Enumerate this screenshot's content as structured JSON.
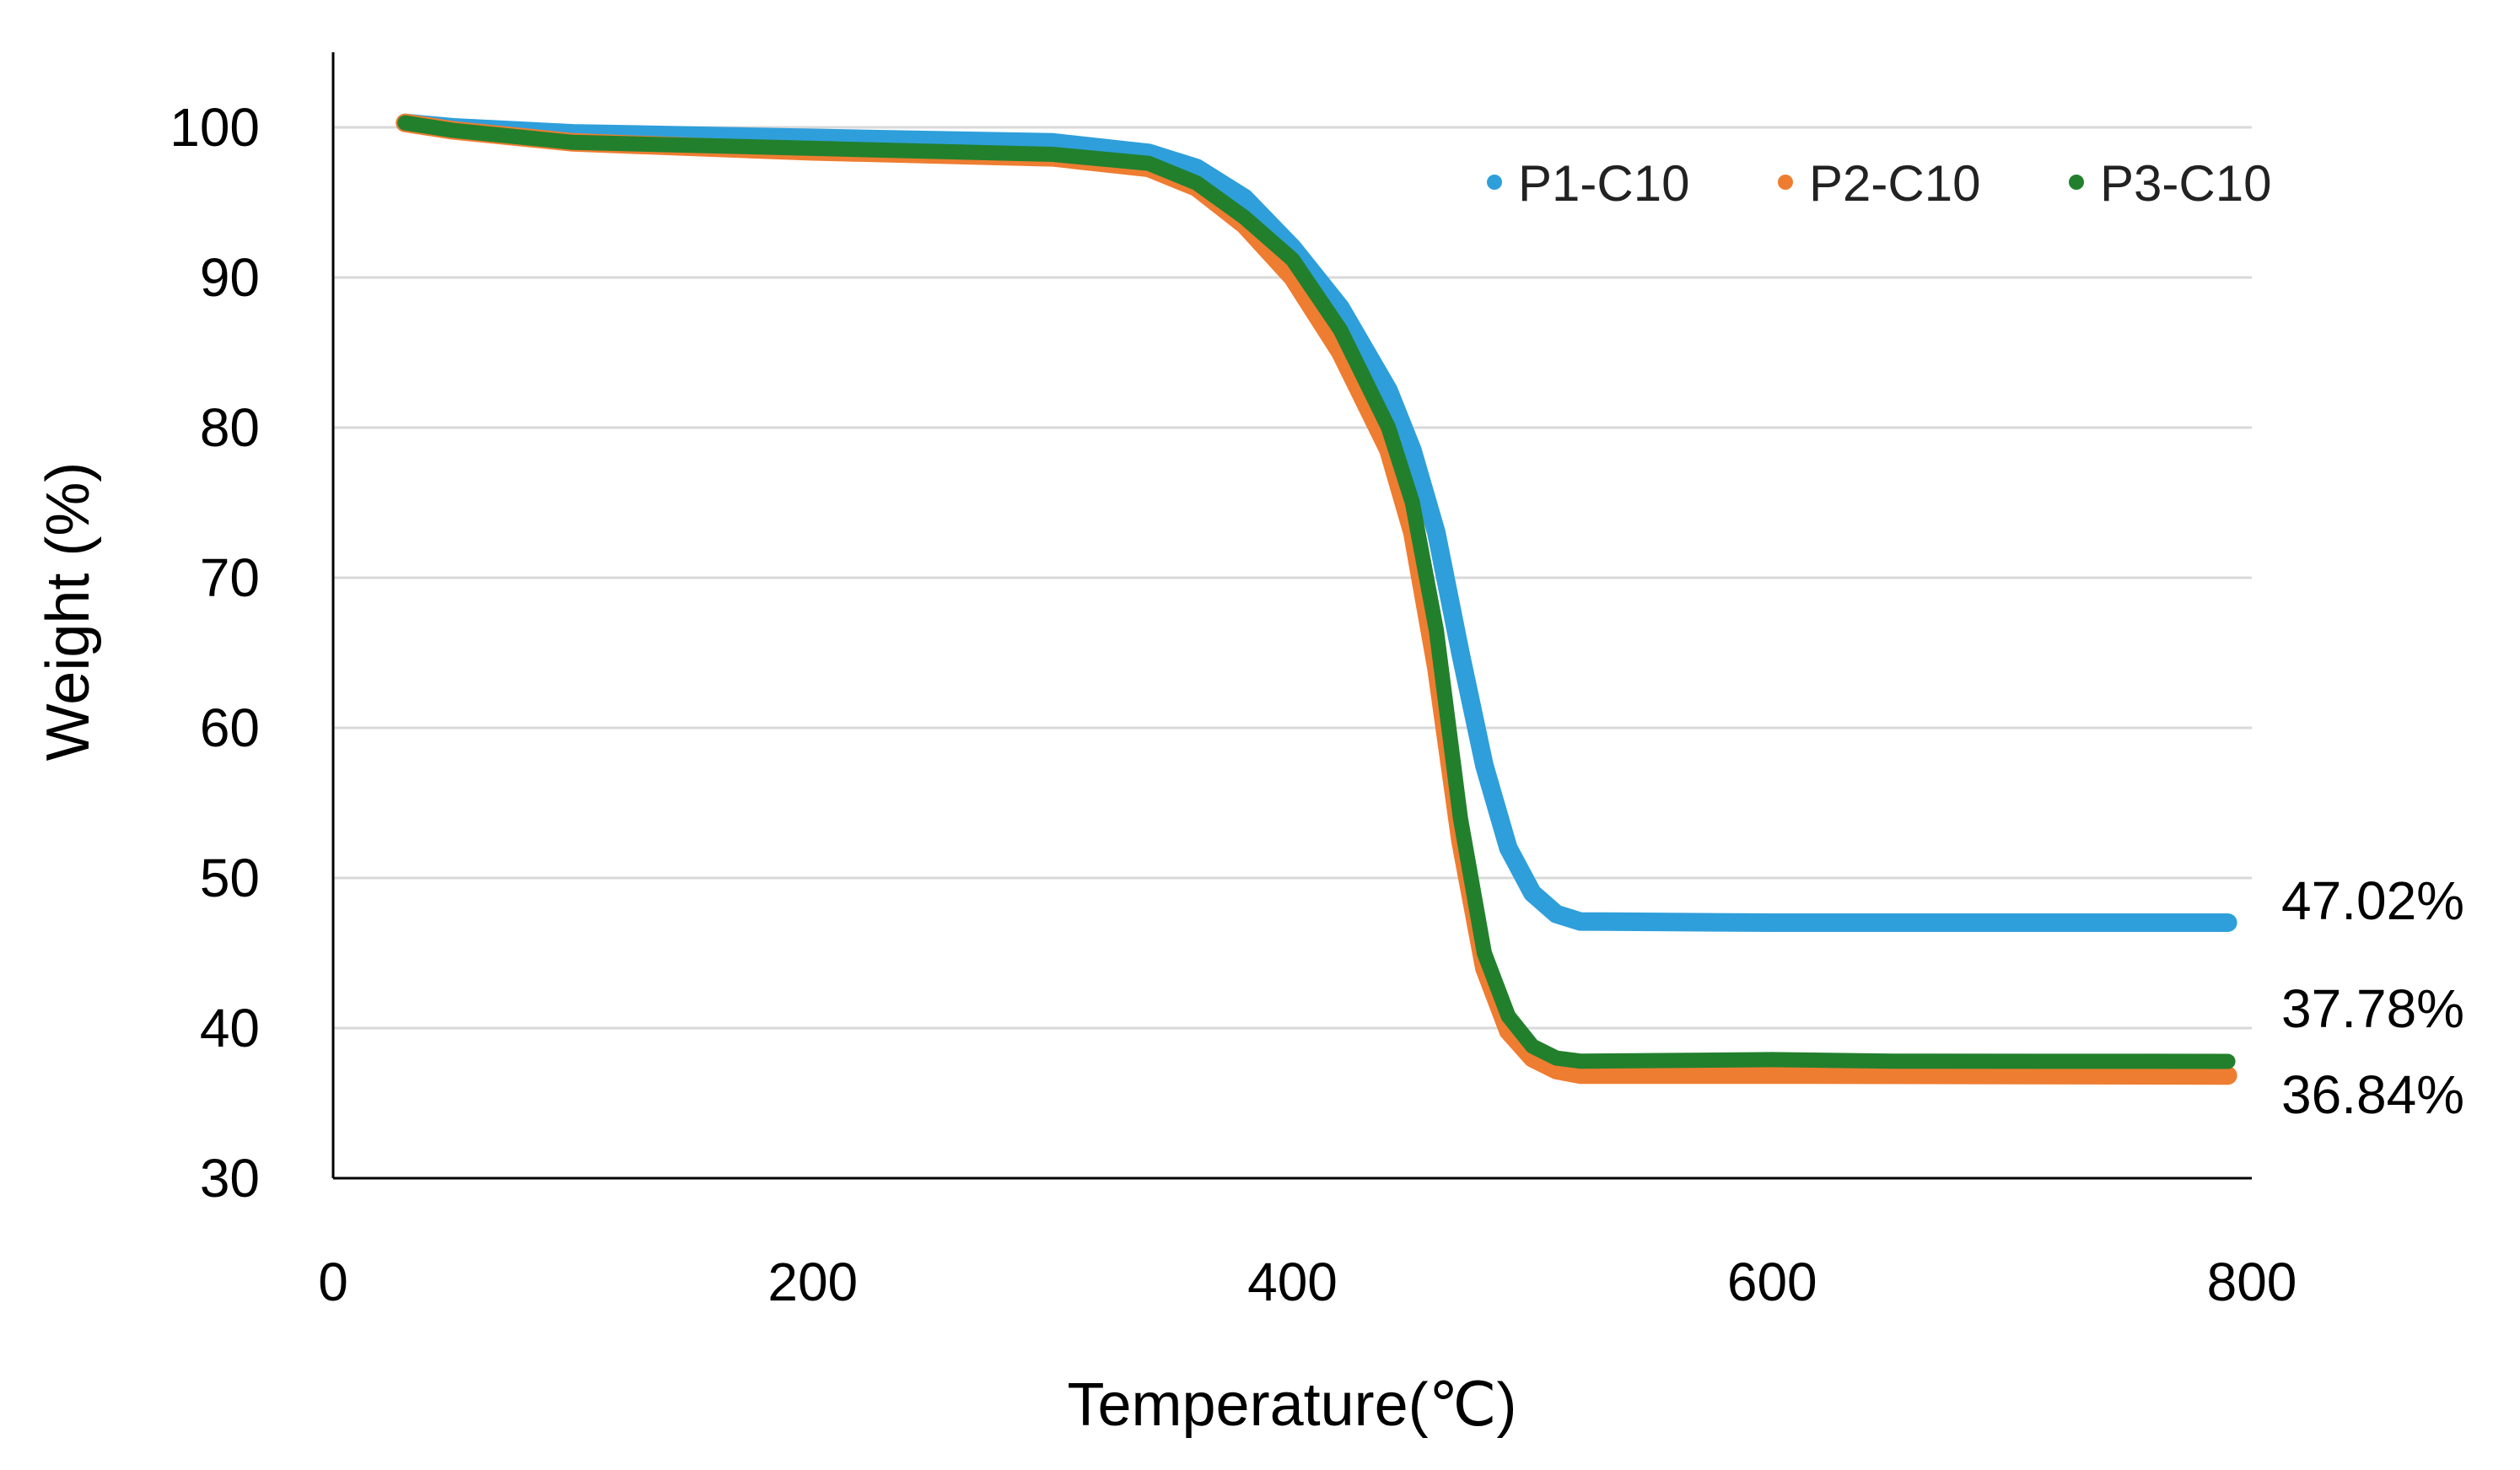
{
  "chart_data": {
    "type": "scatter",
    "title": "",
    "xlabel": "Temperature(℃)",
    "ylabel": "Weight (%)",
    "xlim": [
      0,
      800
    ],
    "ylim": [
      30,
      105
    ],
    "x_ticks": [
      "0",
      "200",
      "400",
      "600",
      "800"
    ],
    "y_ticks": [
      "30",
      "40",
      "50",
      "60",
      "70",
      "80",
      "90",
      "100"
    ],
    "x_tick_values": [
      0,
      200,
      400,
      600,
      800
    ],
    "y_tick_values": [
      30,
      40,
      50,
      60,
      70,
      80,
      90,
      100
    ],
    "grid": "horizontal",
    "legend_position": "top-right",
    "series": [
      {
        "name": "P1-C10",
        "color": "#2e9fdb",
        "end_label": "47.02%",
        "points": [
          [
            30,
            100.3
          ],
          [
            50,
            100.0
          ],
          [
            100,
            99.6
          ],
          [
            200,
            99.3
          ],
          [
            300,
            99.0
          ],
          [
            340,
            98.3
          ],
          [
            360,
            97.3
          ],
          [
            380,
            95.3
          ],
          [
            400,
            92.0
          ],
          [
            420,
            88.0
          ],
          [
            440,
            82.5
          ],
          [
            450,
            78.5
          ],
          [
            460,
            73.0
          ],
          [
            470,
            65.0
          ],
          [
            480,
            57.5
          ],
          [
            490,
            52.0
          ],
          [
            500,
            49.0
          ],
          [
            510,
            47.6
          ],
          [
            520,
            47.1
          ],
          [
            600,
            47.02
          ],
          [
            790,
            47.02
          ]
        ]
      },
      {
        "name": "P2-C10",
        "color": "#ee7d31",
        "end_label": "36.84%",
        "points": [
          [
            30,
            100.3
          ],
          [
            50,
            99.8
          ],
          [
            100,
            99.0
          ],
          [
            200,
            98.4
          ],
          [
            300,
            98.0
          ],
          [
            340,
            97.3
          ],
          [
            360,
            96.0
          ],
          [
            380,
            93.5
          ],
          [
            400,
            90.0
          ],
          [
            420,
            85.0
          ],
          [
            440,
            78.5
          ],
          [
            450,
            73.0
          ],
          [
            460,
            64.0
          ],
          [
            470,
            52.5
          ],
          [
            480,
            44.0
          ],
          [
            490,
            39.8
          ],
          [
            500,
            38.0
          ],
          [
            510,
            37.2
          ],
          [
            520,
            36.9
          ],
          [
            600,
            36.9
          ],
          [
            790,
            36.84
          ]
        ]
      },
      {
        "name": "P3-C10",
        "color": "#22802d",
        "end_label": "37.78%",
        "points": [
          [
            30,
            100.3
          ],
          [
            50,
            99.8
          ],
          [
            100,
            99.0
          ],
          [
            200,
            98.6
          ],
          [
            300,
            98.2
          ],
          [
            340,
            97.6
          ],
          [
            360,
            96.3
          ],
          [
            380,
            94.0
          ],
          [
            400,
            91.2
          ],
          [
            420,
            86.5
          ],
          [
            440,
            80.0
          ],
          [
            450,
            75.0
          ],
          [
            460,
            66.5
          ],
          [
            470,
            54.0
          ],
          [
            480,
            45.0
          ],
          [
            490,
            40.8
          ],
          [
            500,
            38.8
          ],
          [
            510,
            38.0
          ],
          [
            520,
            37.8
          ],
          [
            600,
            37.9
          ],
          [
            650,
            37.8
          ],
          [
            790,
            37.78
          ]
        ]
      }
    ]
  }
}
